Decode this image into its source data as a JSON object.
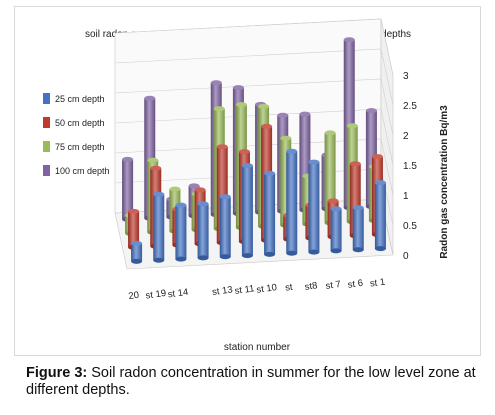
{
  "figure": {
    "caption_label": "Figure 3:",
    "caption_text": "Soil radon concentration in summer for the low level zone at different depths."
  },
  "chart_data": {
    "type": "bar",
    "title": "soil radon concentration in summer for the low level zone at diffent depths",
    "xlabel": "station number",
    "ylabel": "Radon gas concentration Bq/m3",
    "ylim": [
      0,
      3
    ],
    "yticks": [
      "0",
      "0.5",
      "1",
      "1.5",
      "2",
      "2.5",
      "3"
    ],
    "categories": [
      "20",
      "st 19",
      "st 14",
      "",
      "st 13",
      "st 11",
      "st 10",
      "st",
      "st8",
      "st 7",
      "st 6",
      "st 1"
    ],
    "legend_position": "left",
    "series": [
      {
        "name": "25 cm depth",
        "color": "#4472c4",
        "values": [
          0.3,
          1.1,
          0.9,
          0.9,
          1.0,
          1.5,
          1.35,
          1.7,
          1.5,
          0.7,
          0.7,
          1.1
        ]
      },
      {
        "name": "50 cm depth",
        "color": "#c0392b",
        "values": [
          0.6,
          1.3,
          0.6,
          0.9,
          1.6,
          1.5,
          1.9,
          0.4,
          0.55,
          0.6,
          1.2,
          1.3
        ]
      },
      {
        "name": "75 cm depth",
        "color": "#9bbb59",
        "values": [
          0.3,
          1.2,
          0.7,
          0.6,
          2.0,
          2.05,
          2.0,
          1.45,
          0.8,
          1.5,
          1.6,
          0.9
        ]
      },
      {
        "name": "100 cm depth",
        "color": "#8064a2",
        "values": [
          1.0,
          2.0,
          0.3,
          0.5,
          2.2,
          2.1,
          1.8,
          1.6,
          1.6,
          0.9,
          2.8,
          1.6
        ]
      }
    ]
  }
}
